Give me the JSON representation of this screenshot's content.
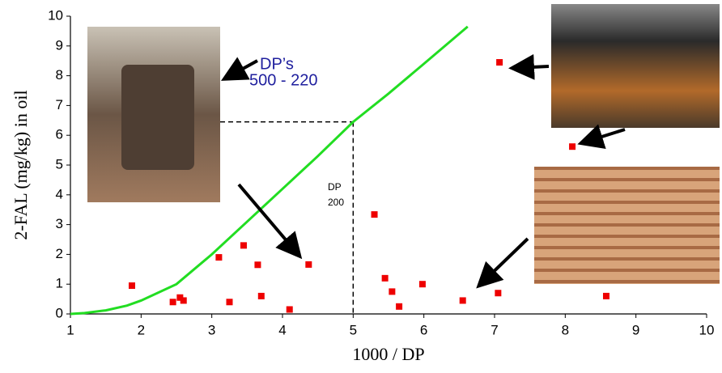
{
  "chart_data": {
    "type": "scatter",
    "x_label": "1000 / DP",
    "y_label": "2-FAL (mg/kg) in oil",
    "annotations": [
      "DP’s",
      "500 - 220",
      "DP",
      "200"
    ],
    "xlim": [
      1,
      10
    ],
    "xticks": [
      1,
      2,
      3,
      4,
      5,
      6,
      7,
      8,
      9,
      10
    ],
    "ylim": [
      0,
      10
    ],
    "yticks": [
      0,
      1,
      2,
      3,
      4,
      5,
      6,
      7,
      8,
      9,
      10
    ],
    "reference": {
      "x": 5,
      "y": 6.45
    },
    "series": [
      {
        "type": "line",
        "color": "#22dd22",
        "x": [
          1,
          1.2,
          1.5,
          1.8,
          2,
          2.5,
          3,
          3.5,
          4,
          4.5,
          5,
          5.5,
          6,
          6.62
        ],
        "values": [
          0,
          0.03,
          0.12,
          0.28,
          0.45,
          1.0,
          2.0,
          3.1,
          4.2,
          5.3,
          6.45,
          7.4,
          8.4,
          9.65
        ]
      },
      {
        "type": "scatter",
        "color": "#ee0000",
        "x": [
          1.87,
          2.45,
          2.55,
          2.6,
          3.1,
          3.25,
          3.45,
          3.65,
          3.7,
          4.1,
          4.37,
          5.3,
          5.45,
          5.55,
          5.65,
          5.98,
          6.55,
          7.05,
          7.07,
          8.1,
          8.58
        ],
        "values": [
          0.95,
          0.4,
          0.55,
          0.45,
          1.9,
          0.4,
          2.3,
          1.65,
          0.6,
          0.15,
          1.66,
          3.34,
          1.2,
          0.75,
          0.25,
          1.0,
          0.45,
          0.7,
          8.45,
          5.62,
          0.6
        ]
      }
    ]
  }
}
